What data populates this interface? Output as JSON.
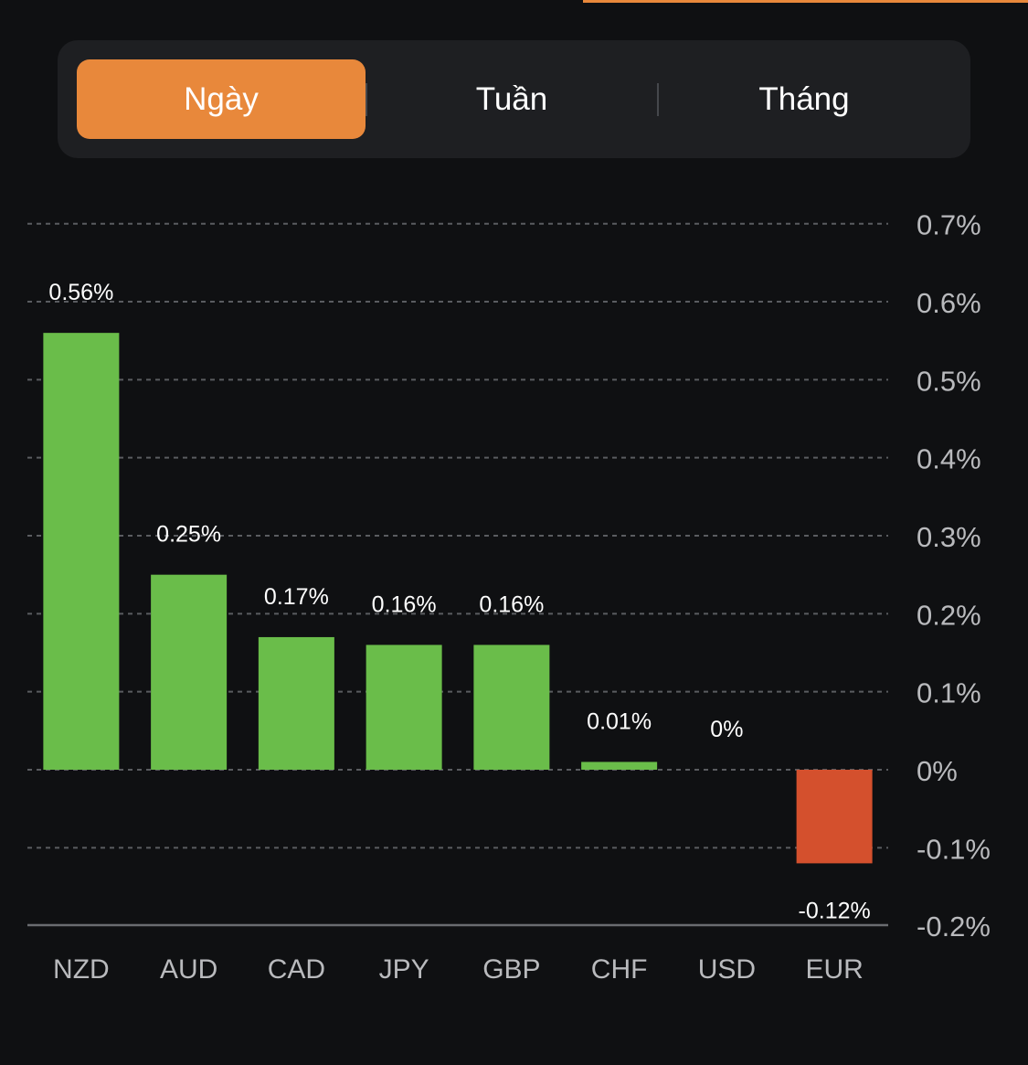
{
  "tabs": [
    {
      "label": "Ngày",
      "active": true
    },
    {
      "label": "Tuần",
      "active": false
    },
    {
      "label": "Tháng",
      "active": false
    }
  ],
  "colors": {
    "accent": "#e8883b",
    "positive": "#6abd4a",
    "negative": "#d4502d",
    "background": "#0f1012",
    "panel": "#1e1f22",
    "grid": "#5a5c60",
    "axis_text": "#b9babd"
  },
  "chart_data": {
    "type": "bar",
    "categories": [
      "NZD",
      "AUD",
      "CAD",
      "JPY",
      "GBP",
      "CHF",
      "USD",
      "EUR"
    ],
    "values": [
      0.56,
      0.25,
      0.17,
      0.16,
      0.16,
      0.01,
      0,
      -0.12
    ],
    "value_labels": [
      "0.56%",
      "0.25%",
      "0.17%",
      "0.16%",
      "0.16%",
      "0.01%",
      "0%",
      "-0.12%"
    ],
    "yticks": [
      0.7,
      0.6,
      0.5,
      0.4,
      0.3,
      0.2,
      0.1,
      0,
      -0.1,
      -0.2
    ],
    "ytick_labels": [
      "0.7%",
      "0.6%",
      "0.5%",
      "0.4%",
      "0.3%",
      "0.2%",
      "0.1%",
      "0%",
      "-0.1%",
      "-0.2%"
    ],
    "ylim": [
      -0.2,
      0.7
    ],
    "grid": true,
    "axis_position": "right"
  }
}
